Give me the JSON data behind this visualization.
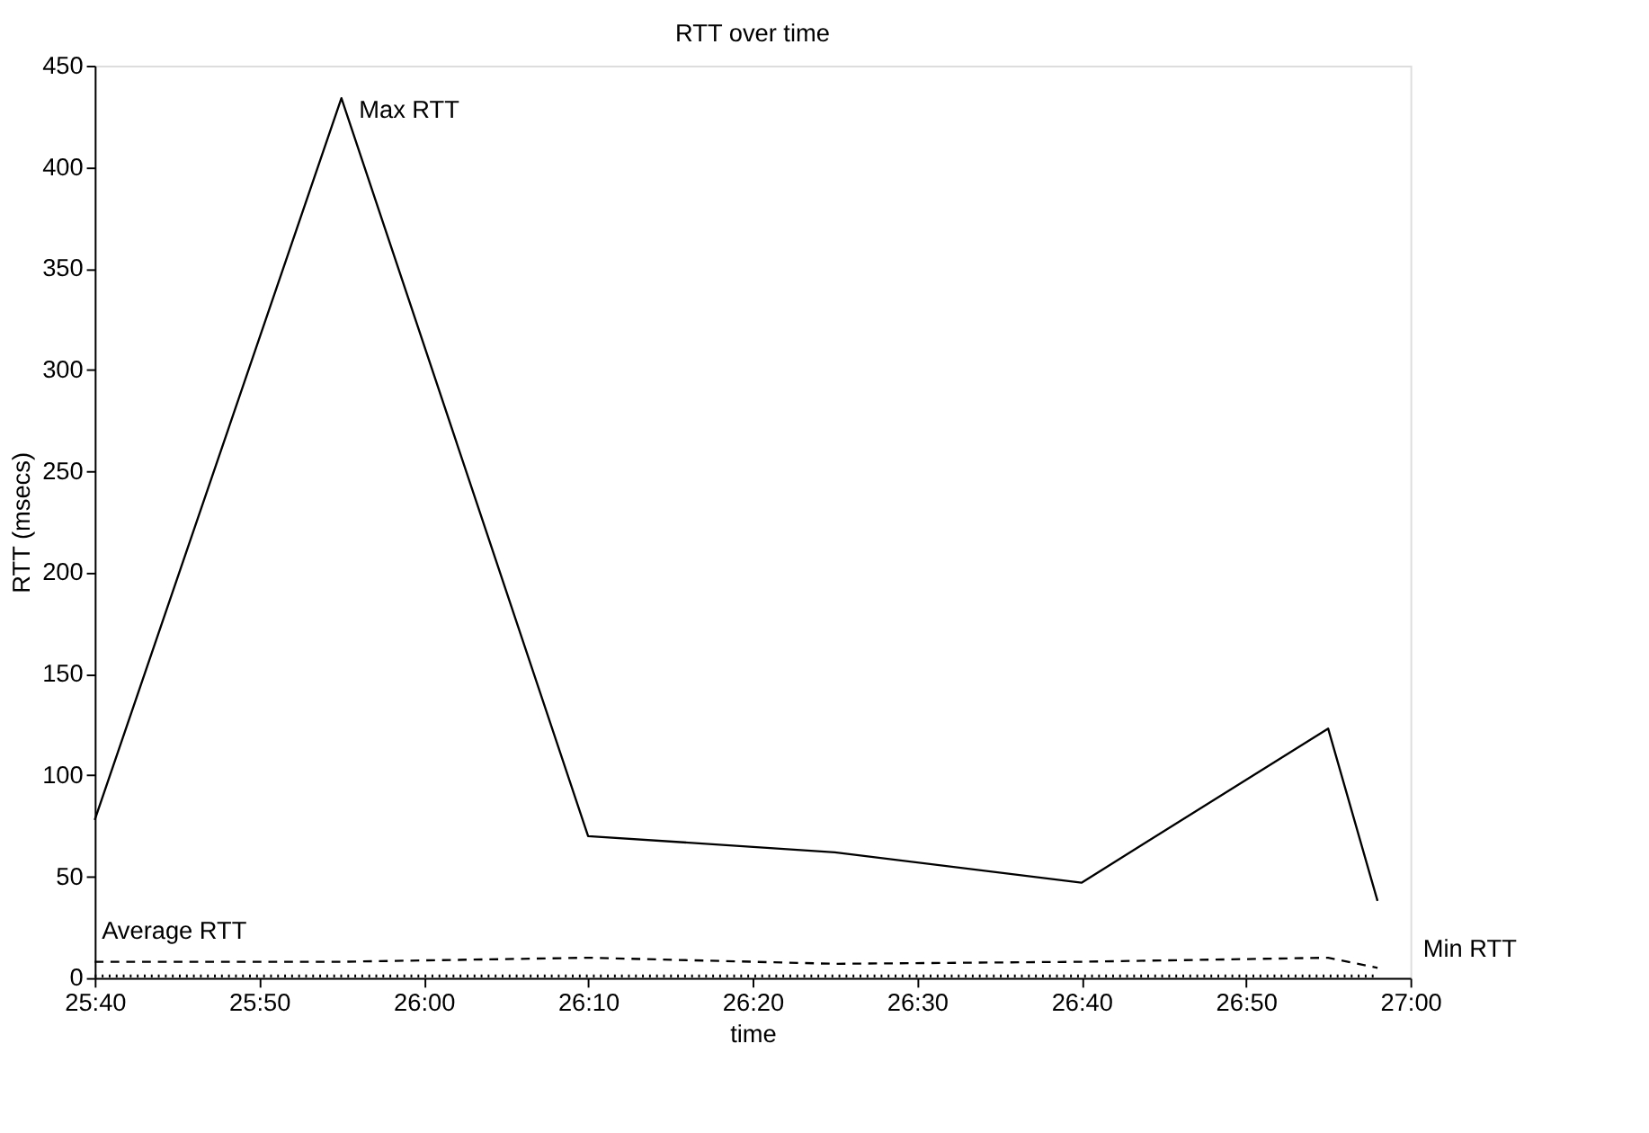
{
  "chart_data": {
    "type": "line",
    "title": "RTT over time",
    "xlabel": "time",
    "ylabel": "RTT (msecs)",
    "x": [
      1540,
      1555,
      1570,
      1585,
      1600,
      1615,
      1618
    ],
    "series": [
      {
        "name": "Max RTT",
        "color": "#000000",
        "line_style": "solid",
        "values": [
          78,
          434,
          70,
          62,
          47,
          123,
          38
        ]
      },
      {
        "name": "Average RTT",
        "color": "#000000",
        "line_style": "dashed",
        "values": [
          8,
          8,
          10,
          7,
          8,
          10,
          5
        ]
      },
      {
        "name": "Min RTT",
        "color": "#000000",
        "line_style": "dotted",
        "values": [
          1,
          1,
          1,
          1,
          1,
          1,
          1
        ]
      }
    ],
    "xlim": [
      1540,
      1620
    ],
    "xticks": [
      {
        "value": 1540,
        "label": "25:40"
      },
      {
        "value": 1550,
        "label": "25:50"
      },
      {
        "value": 1560,
        "label": "26:00"
      },
      {
        "value": 1570,
        "label": "26:10"
      },
      {
        "value": 1580,
        "label": "26:20"
      },
      {
        "value": 1590,
        "label": "26:30"
      },
      {
        "value": 1600,
        "label": "26:40"
      },
      {
        "value": 1610,
        "label": "26:50"
      },
      {
        "value": 1620,
        "label": "27:00"
      }
    ],
    "ylim": [
      0,
      450
    ],
    "yticks": [
      0,
      50,
      100,
      150,
      200,
      250,
      300,
      350,
      400,
      450
    ],
    "grid": false
  }
}
